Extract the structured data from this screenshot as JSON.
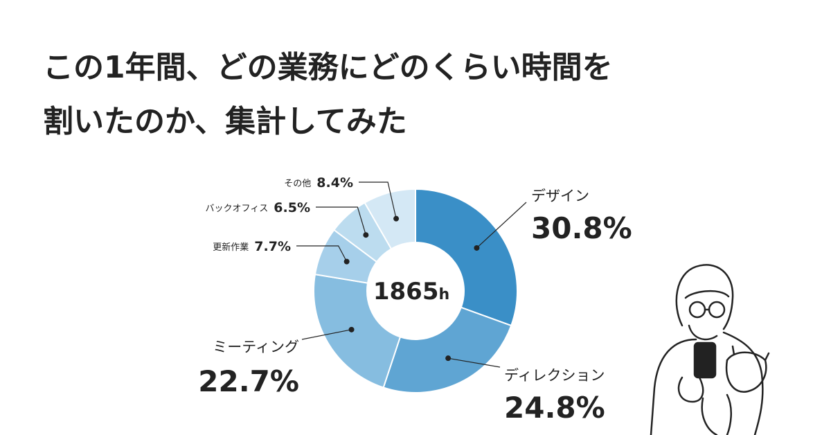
{
  "chart_data": {
    "type": "donut",
    "title": [
      "この1年間、どの業務にどのくらい時間を",
      "割いたのか、集計してみた"
    ],
    "center_value": "1865",
    "center_unit": "h",
    "categories": [
      "デザイン",
      "ディレクション",
      "ミーティング",
      "更新作業",
      "バックオフィス",
      "その他"
    ],
    "values": [
      30.8,
      24.8,
      22.7,
      7.7,
      6.5,
      8.4
    ],
    "value_labels": [
      "30.8%",
      "24.8%",
      "22.7%",
      "7.7%",
      "6.5%",
      "8.4%"
    ],
    "colors": [
      "#3a8fc7",
      "#5fa5d3",
      "#86bde0",
      "#a6cfea",
      "#bcdcef",
      "#d4e8f5"
    ]
  }
}
